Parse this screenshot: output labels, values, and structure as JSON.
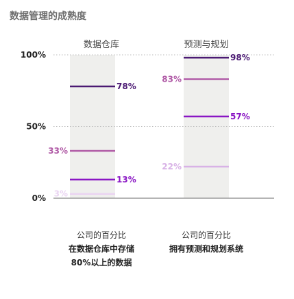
{
  "page_title": "数据管理的成熟度",
  "colors": {
    "dark_purple": "#4b1a73",
    "purple": "#8a16c4",
    "mauve": "#b05aa6",
    "light_lilac": "#d8b2e6",
    "pale_lilac": "#ead4f2",
    "column_bg": "#efefed",
    "grid": "#bbbbbb",
    "baseline": "#888888"
  },
  "chart_data": {
    "type": "bar",
    "ylim": [
      0,
      100
    ],
    "yticks": [
      "0%",
      "50%",
      "100%"
    ],
    "ytick_values": [
      0,
      50,
      100
    ],
    "grid": "dotted at 50% and 100%",
    "columns": [
      {
        "title": "数据仓库",
        "caption_line1": "公司的百分比",
        "caption_line2": "在数据仓库中存储80%以上的数据",
        "markers": [
          {
            "value": 78,
            "label": "78%",
            "color": "#4b1a73",
            "label_side": "right"
          },
          {
            "value": 33,
            "label": "33%",
            "color": "#b05aa6",
            "label_side": "left"
          },
          {
            "value": 13,
            "label": "13%",
            "color": "#8a16c4",
            "label_side": "right"
          },
          {
            "value": 3,
            "label": "3%",
            "color": "#ead4f2",
            "label_side": "left"
          }
        ]
      },
      {
        "title": "预测与规划",
        "caption_line1": "公司的百分比",
        "caption_line2": "拥有预测和规划系统",
        "markers": [
          {
            "value": 98,
            "label": "98%",
            "color": "#4b1a73",
            "label_side": "right"
          },
          {
            "value": 83,
            "label": "83%",
            "color": "#b05aa6",
            "label_side": "left"
          },
          {
            "value": 57,
            "label": "57%",
            "color": "#8a16c4",
            "label_side": "right"
          },
          {
            "value": 22,
            "label": "22%",
            "color": "#d8b2e6",
            "label_side": "left"
          }
        ]
      }
    ]
  }
}
